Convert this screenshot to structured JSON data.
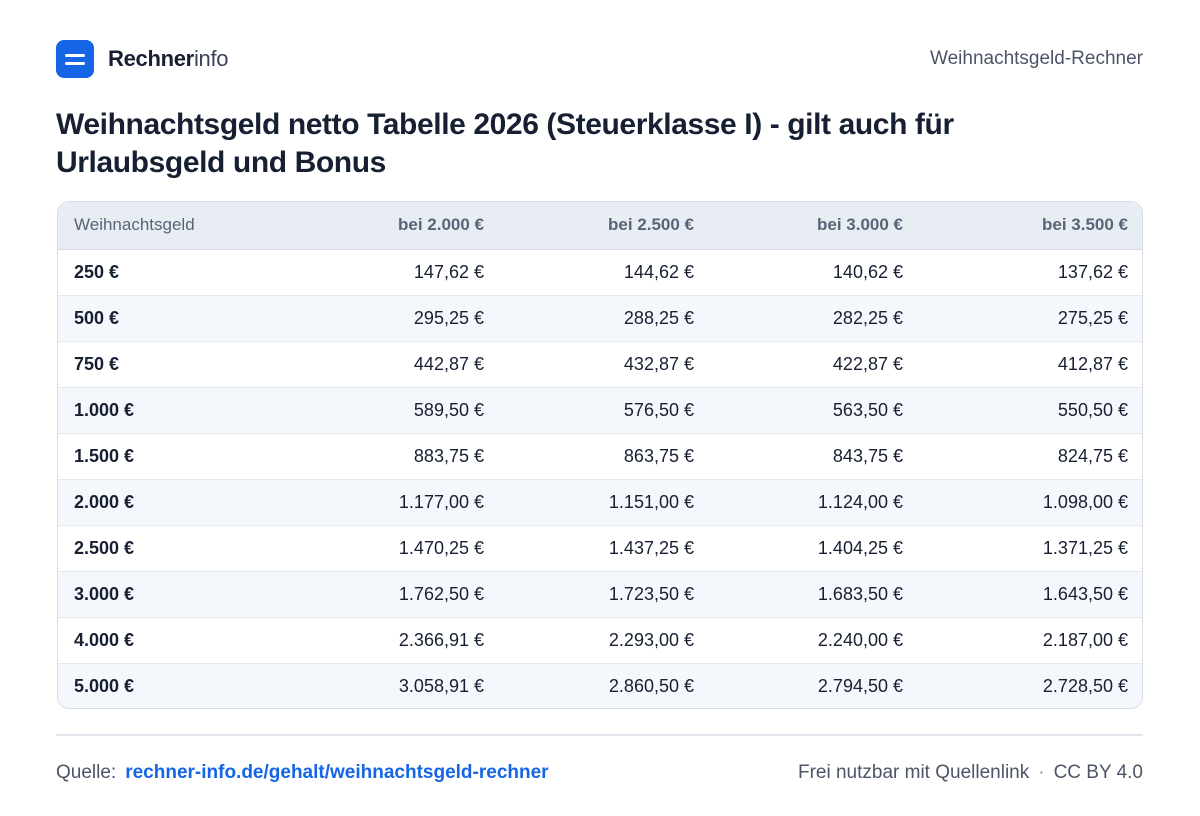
{
  "brand": {
    "name_bold": "Rechner",
    "name_light": "info"
  },
  "header": {
    "right_label": "Weihnachtsgeld-Rechner"
  },
  "title": "Weihnachtsgeld netto Tabelle 2026 (Steuerklasse I) - gilt auch für Urlaubsgeld und Bonus",
  "table": {
    "headers": [
      "Weihnachtsgeld",
      "bei 2.000 €",
      "bei 2.500 €",
      "bei 3.000 €",
      "bei 3.500 €"
    ],
    "rows": [
      [
        "250 €",
        "147,62 €",
        "144,62 €",
        "140,62 €",
        "137,62 €"
      ],
      [
        "500 €",
        "295,25 €",
        "288,25 €",
        "282,25 €",
        "275,25 €"
      ],
      [
        "750 €",
        "442,87 €",
        "432,87 €",
        "422,87 €",
        "412,87 €"
      ],
      [
        "1.000 €",
        "589,50 €",
        "576,50 €",
        "563,50 €",
        "550,50 €"
      ],
      [
        "1.500 €",
        "883,75 €",
        "863,75 €",
        "843,75 €",
        "824,75 €"
      ],
      [
        "2.000 €",
        "1.177,00 €",
        "1.151,00 €",
        "1.124,00 €",
        "1.098,00 €"
      ],
      [
        "2.500 €",
        "1.470,25 €",
        "1.437,25 €",
        "1.404,25 €",
        "1.371,25 €"
      ],
      [
        "3.000 €",
        "1.762,50 €",
        "1.723,50 €",
        "1.683,50 €",
        "1.643,50 €"
      ],
      [
        "4.000 €",
        "2.366,91 €",
        "2.293,00 €",
        "2.240,00 €",
        "2.187,00 €"
      ],
      [
        "5.000 €",
        "3.058,91 €",
        "2.860,50 €",
        "2.794,50 €",
        "2.728,50 €"
      ]
    ]
  },
  "footer": {
    "source_label": "Quelle:",
    "source_link": "rechner-info.de/gehalt/weihnachtsgeld-rechner",
    "license_text": "Frei nutzbar mit Quellenlink",
    "separator": "·",
    "license_name": "CC BY 4.0"
  },
  "colors": {
    "accent": "#1565e6",
    "text": "#172033",
    "muted": "#4c5567",
    "header_bg": "#e8edf4",
    "stripe_bg": "#f4f7fb"
  }
}
